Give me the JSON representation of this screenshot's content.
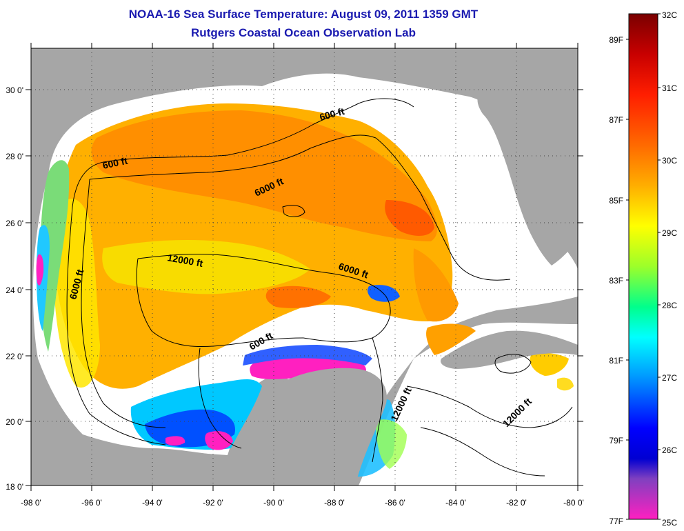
{
  "header": {
    "title": "NOAA-16 Sea Surface Temperature:  August 09, 2011 1359 GMT",
    "subtitle": "Rutgers Coastal Ocean Observation Lab"
  },
  "map": {
    "lon_range": [
      -98,
      -80
    ],
    "lat_range": [
      18,
      31
    ],
    "x_ticks": [
      "-98 0'",
      "-96 0'",
      "-94 0'",
      "-92 0'",
      "-90 0'",
      "-88 0'",
      "-86 0'",
      "-84 0'",
      "-82 0'",
      "-80 0'"
    ],
    "y_ticks": [
      "18 0'",
      "20 0'",
      "22 0'",
      "24 0'",
      "26 0'",
      "28 0'",
      "30 0'"
    ],
    "contour_labels": [
      "600 ft",
      "600 ft",
      "600 ft",
      "6000 ft",
      "6000 ft",
      "6000 ft",
      "12000 ft",
      "12000 ft",
      "12000 ft"
    ],
    "land_color": "#a6a6a6",
    "cloud_color": "#ffffff"
  },
  "colorbar": {
    "celsius_labels": [
      "32C",
      "31C",
      "30C",
      "29C",
      "28C",
      "27C",
      "26C",
      "25C"
    ],
    "fahrenheit_labels": [
      "89F",
      "87F",
      "85F",
      "83F",
      "81F",
      "79F",
      "77F"
    ],
    "colors_top_to_bottom": [
      "#7a0000",
      "#d40000",
      "#ff2a00",
      "#ff7a00",
      "#ffb000",
      "#ffff00",
      "#a0ff30",
      "#00ff90",
      "#00ffff",
      "#0090ff",
      "#0020ff",
      "#0000d0",
      "#8040c0",
      "#ff20c0"
    ]
  }
}
